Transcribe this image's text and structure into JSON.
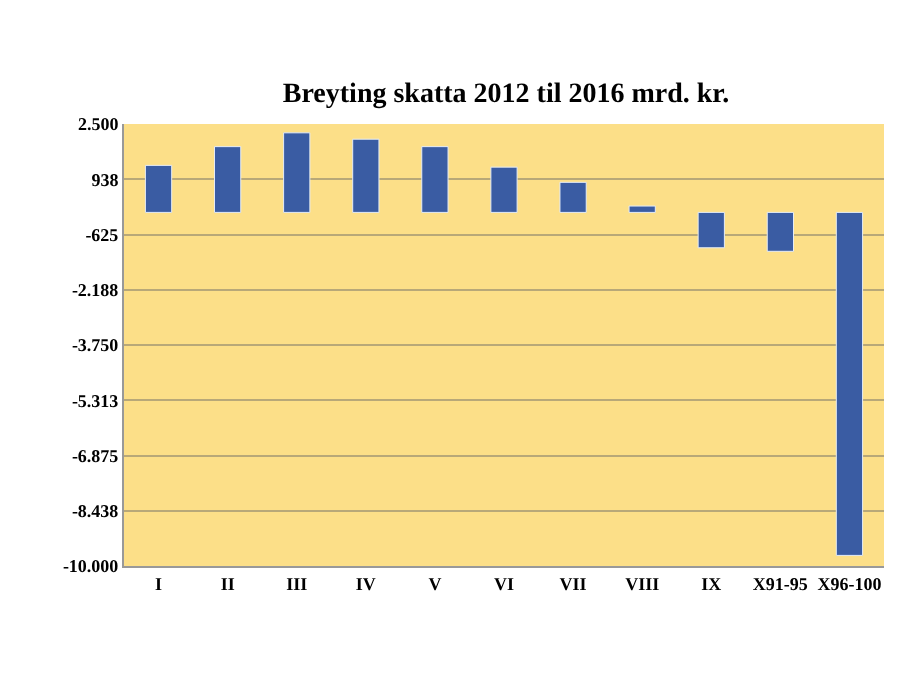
{
  "chart_data": {
    "type": "bar",
    "title": "Breyting skatta 2012 til 2016 mrd. kr.",
    "categories": [
      "I",
      "II",
      "III",
      "IV",
      "V",
      "VI",
      "VII",
      "VIII",
      "IX",
      "X91-95",
      "X96-100"
    ],
    "values": [
      1330,
      1860,
      2250,
      2070,
      1860,
      1280,
      850,
      180,
      -1000,
      -1100,
      -9700
    ],
    "color": "#3a5ca3",
    "ylim": [
      -10000,
      2500
    ],
    "yticks": [
      {
        "value": 2500,
        "label": "2.500"
      },
      938,
      -625,
      {
        "value": -2188,
        "label": "-2.188"
      },
      {
        "value": -3750,
        "label": "-3.750"
      },
      {
        "value": -5313,
        "label": "-5.313"
      },
      {
        "value": -6875,
        "label": "-6.875"
      },
      {
        "value": -8438,
        "label": "-8.438"
      },
      {
        "value": -10000,
        "label": "-10.000"
      }
    ],
    "grid": "y"
  }
}
